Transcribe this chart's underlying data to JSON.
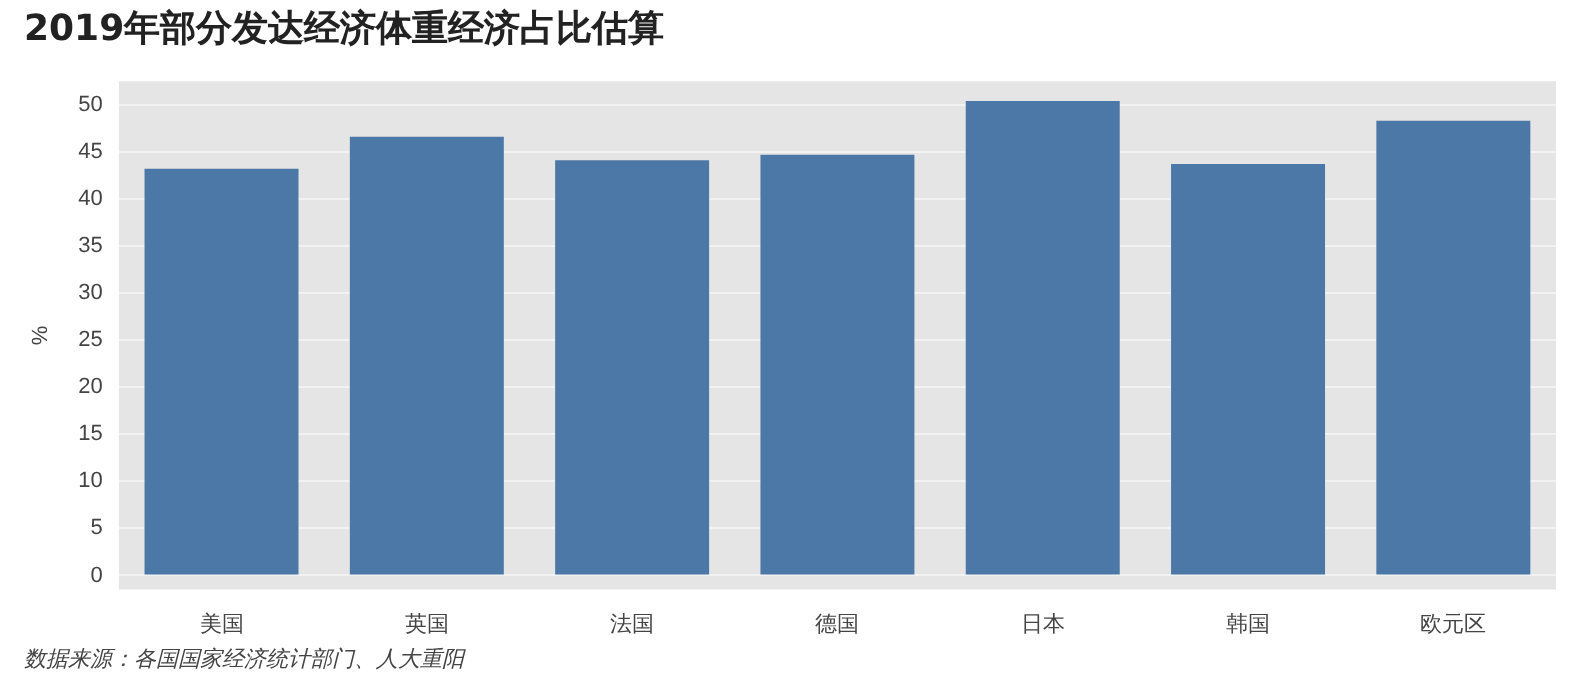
{
  "chart_data": {
    "type": "bar",
    "title": "2019年部分发达经济体重经济占比估算",
    "ylabel": "%",
    "categories": [
      "美国",
      "英国",
      "法国",
      "德国",
      "日本",
      "韩国",
      "欧元区"
    ],
    "values": [
      43.2,
      46.6,
      44.1,
      44.7,
      50.4,
      43.7,
      48.3
    ],
    "color": "#4c78a8",
    "ylim": [
      -1.5,
      52.5
    ],
    "yticks": [
      0,
      5,
      10,
      15,
      20,
      25,
      30,
      35,
      40,
      45,
      50
    ],
    "grid": "y",
    "annotations": [
      "数据来源：各国国家经济统计部门、人大重阳"
    ]
  }
}
